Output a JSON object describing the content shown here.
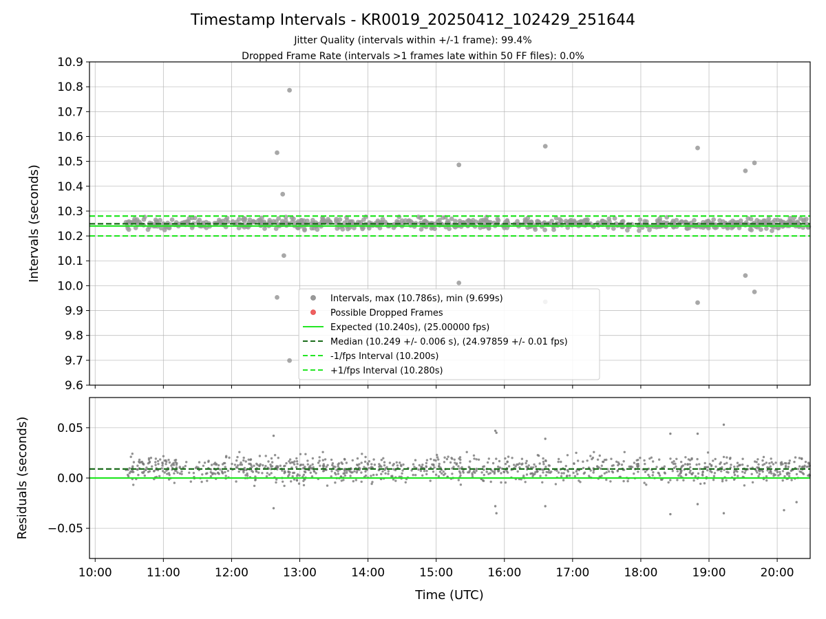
{
  "chart_data": {
    "title": "Timestamp Intervals - KR0019_20250412_102429_251644",
    "subtitles": [
      "Jitter Quality (intervals within +/-1 frame): 99.4%",
      "Dropped Frame Rate (intervals >1 frames late within 50 FF files): 0.0%"
    ],
    "xlabel": "Time (UTC)",
    "x_ticks": [
      "10:00",
      "11:00",
      "12:00",
      "13:00",
      "14:00",
      "15:00",
      "16:00",
      "17:00",
      "18:00",
      "19:00",
      "20:00"
    ],
    "xlim": [
      "09:55",
      "20:29"
    ],
    "panels": [
      {
        "type": "scatter",
        "ylabel": "Intervals (seconds)",
        "ylim": [
          9.6,
          10.9
        ],
        "y_ticks": [
          "9.6",
          "9.7",
          "9.8",
          "9.9",
          "10.0",
          "10.1",
          "10.2",
          "10.3",
          "10.4",
          "10.5",
          "10.6",
          "10.7",
          "10.8",
          "10.9"
        ],
        "grid": true,
        "legend_position": "lower-center",
        "legend": [
          "Intervals, max (10.786s), min (9.699s)",
          "Possible Dropped Frames",
          "Expected (10.240s), (25.00000 fps)",
          "Median (10.249 +/- 0.006 s), (24.97859 +/- 0.01 fps)",
          "-1/fps Interval (10.200s)",
          "+1/fps Interval (10.280s)"
        ],
        "reference_lines": [
          {
            "label": "Expected",
            "y": 10.24,
            "color": "#22e622",
            "style": "solid"
          },
          {
            "label": "Median",
            "y": 10.249,
            "color": "#1a6b1a",
            "style": "dashed"
          },
          {
            "label": "-1/fps",
            "y": 10.2,
            "color": "#22e622",
            "style": "dashed"
          },
          {
            "label": "+1/fps",
            "y": 10.28,
            "color": "#22e622",
            "style": "dashed"
          }
        ],
        "series": [
          {
            "name": "Intervals",
            "color": "#999999",
            "band": {
              "x_start": "10:27",
              "x_end": "20:29",
              "center": 10.249,
              "spread": 0.02
            },
            "outliers": [
              {
                "x": "12:51",
                "y": 10.786
              },
              {
                "x": "12:40",
                "y": 10.535
              },
              {
                "x": "12:45",
                "y": 10.368
              },
              {
                "x": "12:46",
                "y": 10.121
              },
              {
                "x": "12:40",
                "y": 9.953
              },
              {
                "x": "12:51",
                "y": 9.699
              },
              {
                "x": "15:20",
                "y": 10.486
              },
              {
                "x": "15:20",
                "y": 10.011
              },
              {
                "x": "16:36",
                "y": 10.561
              },
              {
                "x": "16:36",
                "y": 9.935
              },
              {
                "x": "18:50",
                "y": 10.554
              },
              {
                "x": "18:50",
                "y": 9.932
              },
              {
                "x": "19:32",
                "y": 10.462
              },
              {
                "x": "19:40",
                "y": 10.494
              },
              {
                "x": "19:32",
                "y": 10.041
              },
              {
                "x": "19:40",
                "y": 9.975
              }
            ]
          },
          {
            "name": "Possible Dropped Frames",
            "color": "#f06060",
            "points": []
          }
        ]
      },
      {
        "type": "scatter",
        "ylabel": "Residuals (seconds)",
        "ylim": [
          -0.08,
          0.08
        ],
        "y_ticks": [
          "−0.05",
          "0.00",
          "0.05"
        ],
        "grid": true,
        "reference_lines": [
          {
            "y": 0.0,
            "color": "#22e622",
            "style": "solid"
          },
          {
            "y": 0.009,
            "color": "#1a6b1a",
            "style": "dashed"
          }
        ],
        "series": [
          {
            "name": "Residuals",
            "color": "#777777",
            "band": {
              "x_start": "10:27",
              "x_end": "20:29",
              "center": 0.009,
              "spread": 0.012
            },
            "outliers": [
              {
                "x": "12:37",
                "y": 0.042
              },
              {
                "x": "12:37",
                "y": -0.03
              },
              {
                "x": "15:52",
                "y": 0.047
              },
              {
                "x": "15:53",
                "y": 0.045
              },
              {
                "x": "15:52",
                "y": -0.028
              },
              {
                "x": "15:53",
                "y": -0.035
              },
              {
                "x": "16:36",
                "y": 0.039
              },
              {
                "x": "16:36",
                "y": -0.028
              },
              {
                "x": "18:26",
                "y": 0.044
              },
              {
                "x": "18:26",
                "y": -0.036
              },
              {
                "x": "18:50",
                "y": 0.044
              },
              {
                "x": "18:50",
                "y": -0.026
              },
              {
                "x": "19:13",
                "y": 0.053
              },
              {
                "x": "19:13",
                "y": -0.035
              },
              {
                "x": "20:06",
                "y": -0.032
              },
              {
                "x": "20:17",
                "y": -0.024
              }
            ]
          }
        ]
      }
    ]
  }
}
